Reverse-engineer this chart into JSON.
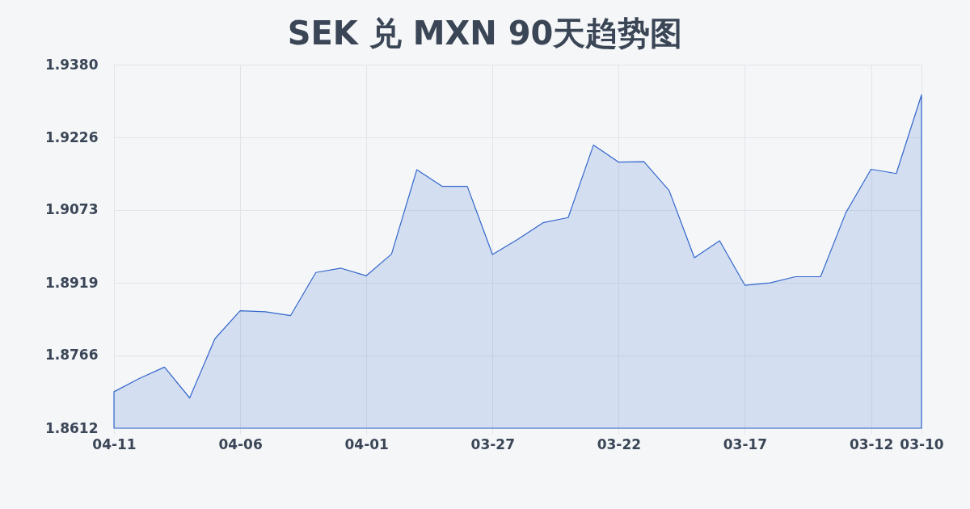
{
  "chart_data": {
    "type": "area",
    "title": "SEK 兑 MXN 90天趋势图",
    "categories": [
      "04-11",
      null,
      null,
      null,
      null,
      "04-06",
      null,
      null,
      null,
      null,
      "04-01",
      null,
      null,
      null,
      null,
      "03-27",
      null,
      null,
      null,
      null,
      "03-22",
      null,
      null,
      null,
      null,
      "03-17",
      null,
      null,
      null,
      null,
      "03-12",
      null,
      "03-10"
    ],
    "values": [
      1.8689,
      1.8717,
      1.8741,
      1.8676,
      1.8801,
      1.886,
      1.8858,
      1.885,
      1.8941,
      1.895,
      1.8934,
      1.898,
      1.9158,
      1.9123,
      1.9123,
      1.8979,
      1.9011,
      1.9046,
      1.9057,
      1.921,
      1.9174,
      1.9175,
      1.9114,
      1.8972,
      1.9008,
      1.8914,
      1.8919,
      1.8932,
      1.8932,
      1.9067,
      1.9159,
      1.915,
      1.9316
    ],
    "color": "#3366cc",
    "ylim": [
      1.8612,
      1.938
    ],
    "yticks": [
      1.8612,
      1.8766,
      1.8919,
      1.9073,
      1.9226,
      {
        "value": 1.938,
        "label": "1.9380"
      }
    ],
    "grid": true
  }
}
